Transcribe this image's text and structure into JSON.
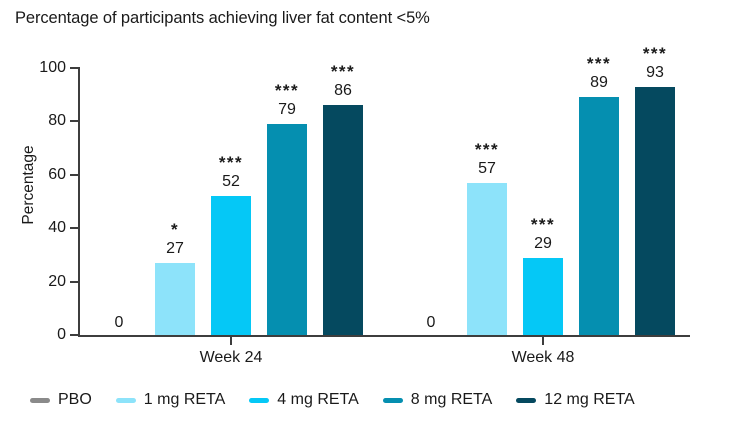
{
  "title": "Percentage of participants achieving liver fat content <5%",
  "chart_data": {
    "type": "bar",
    "title": "Percentage of participants achieving liver fat content <5%",
    "xlabel": "",
    "ylabel": "Percentage",
    "ylim": [
      0,
      100
    ],
    "y_ticks": [
      0,
      20,
      40,
      60,
      80,
      100
    ],
    "grid": false,
    "legend_position": "bottom",
    "categories": [
      "Week 24",
      "Week 48"
    ],
    "series": [
      {
        "name": "PBO",
        "color": "#8a8a8a",
        "values": [
          0,
          0
        ],
        "significance": [
          "",
          ""
        ]
      },
      {
        "name": "1 mg RETA",
        "color": "#8de3fa",
        "values": [
          27,
          57
        ],
        "significance": [
          "*",
          "***"
        ]
      },
      {
        "name": "4 mg RETA",
        "color": "#05c8f6",
        "values": [
          52,
          29
        ],
        "significance": [
          "***",
          "***"
        ]
      },
      {
        "name": "8 mg RETA",
        "color": "#058fb0",
        "values": [
          79,
          89
        ],
        "significance": [
          "***",
          "***"
        ]
      },
      {
        "name": "12 mg RETA",
        "color": "#05495f",
        "values": [
          86,
          93
        ],
        "significance": [
          "***",
          "***"
        ]
      }
    ],
    "annotations": {
      "significance_note_symbols": [
        "*",
        "***"
      ]
    }
  }
}
